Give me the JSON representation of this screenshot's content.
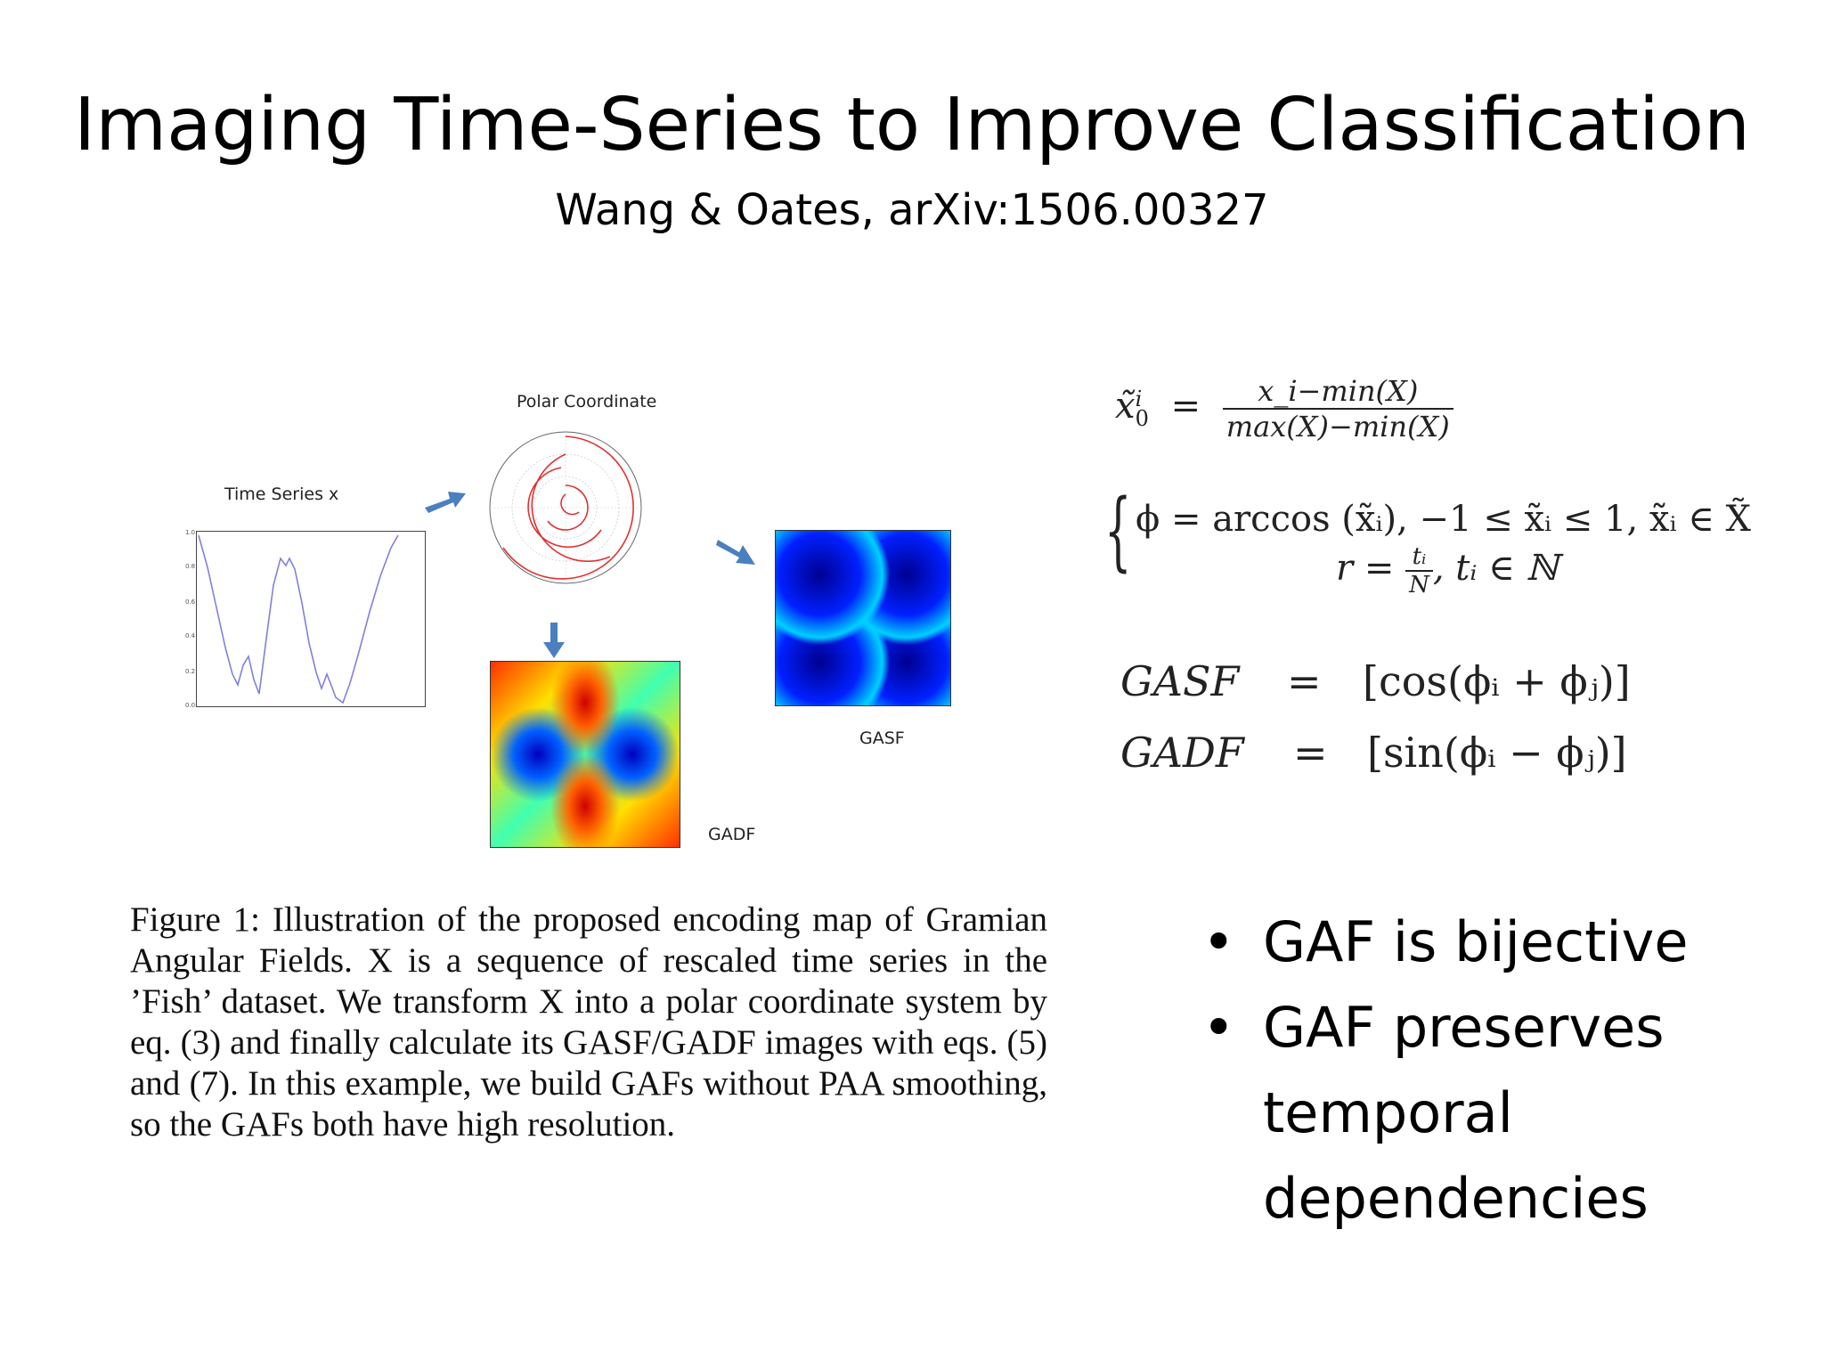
{
  "slide": {
    "title": "Imaging Time-Series to Improve Classification",
    "subtitle": "Wang & Oates, arXiv:1506.00327"
  },
  "figure": {
    "time_series_label": "Time Series x",
    "polar_label": "Polar Coordinate",
    "gasf_label": "GASF",
    "gadf_label": "GADF",
    "line_color": "#8080e0",
    "spiral_color": "#e03030",
    "heatmap_colormap": "jet"
  },
  "equations": {
    "rescale_lhs": "x̃",
    "rescale_sup": "i",
    "rescale_sub": "0",
    "rescale_eq": "=",
    "rescale_num": "x_i−min(X)",
    "rescale_den": "max(X)−min(X)",
    "phi_line": "ϕ = arccos (x̃ᵢ), −1 ≤ x̃ᵢ ≤ 1, x̃ᵢ ∈ X̃",
    "r_lhs": "r =",
    "r_num": "tᵢ",
    "r_den": "N",
    "r_rest": ", tᵢ ∈ ℕ",
    "gasf_name": "GASF",
    "gasf_eq": "=",
    "gasf_rhs": "[cos(ϕᵢ + ϕⱼ)]",
    "gadf_name": "GADF",
    "gadf_eq": "=",
    "gadf_rhs": "[sin(ϕᵢ − ϕⱼ)]"
  },
  "caption": "Figure 1:  Illustration of the proposed encoding map of Gramian Angular Fields. X is a sequence of rescaled time series in the ’Fish’ dataset. We transform X into a polar coordinate system by eq. (3) and finally calculate its GASF/GADF images with eqs. (5) and (7). In this example, we build GAFs without PAA smoothing, so the GAFs both have high resolution.",
  "bullets": [
    "GAF is bijective",
    "GAF preserves temporal dependencies"
  ]
}
